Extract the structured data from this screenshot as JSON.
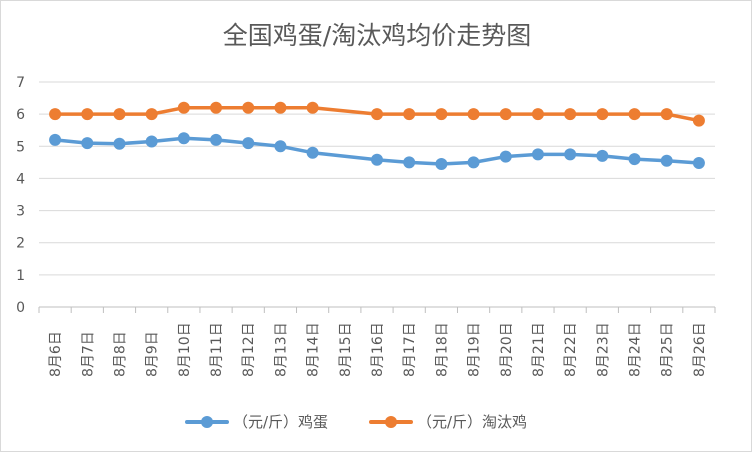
{
  "chart_data": {
    "type": "line",
    "title": "全国鸡蛋/淘汰鸡均价走势图",
    "xlabel": "",
    "ylabel": "",
    "categories": [
      "8月6日",
      "8月7日",
      "8月8日",
      "8月9日",
      "8月10日",
      "8月11日",
      "8月12日",
      "8月13日",
      "8月14日",
      "8月15日",
      "8月16日",
      "8月17日",
      "8月18日",
      "8月19日",
      "8月20日",
      "8月21日",
      "8月22日",
      "8月23日",
      "8月24日",
      "8月25日",
      "8月26日"
    ],
    "series": [
      {
        "name": "（元/斤）鸡蛋",
        "color": "#5b9bd5",
        "values": [
          5.2,
          5.1,
          5.08,
          5.15,
          5.25,
          5.2,
          5.1,
          5.0,
          4.8,
          null,
          4.58,
          4.5,
          4.45,
          4.5,
          4.68,
          4.75,
          4.75,
          4.7,
          4.6,
          4.55,
          4.48
        ]
      },
      {
        "name": "（元/斤）淘汰鸡",
        "color": "#ed7d31",
        "values": [
          6.0,
          6.0,
          6.0,
          6.0,
          6.2,
          6.2,
          6.2,
          6.2,
          6.2,
          null,
          6.0,
          6.0,
          6.0,
          6.0,
          6.0,
          6.0,
          6.0,
          6.0,
          6.0,
          6.0,
          5.8
        ]
      }
    ],
    "yticks": [
      "0",
      "1",
      "2",
      "3",
      "4",
      "5",
      "6",
      "7"
    ],
    "ylim": [
      0,
      7
    ],
    "grid": true,
    "legend": "bottom"
  }
}
